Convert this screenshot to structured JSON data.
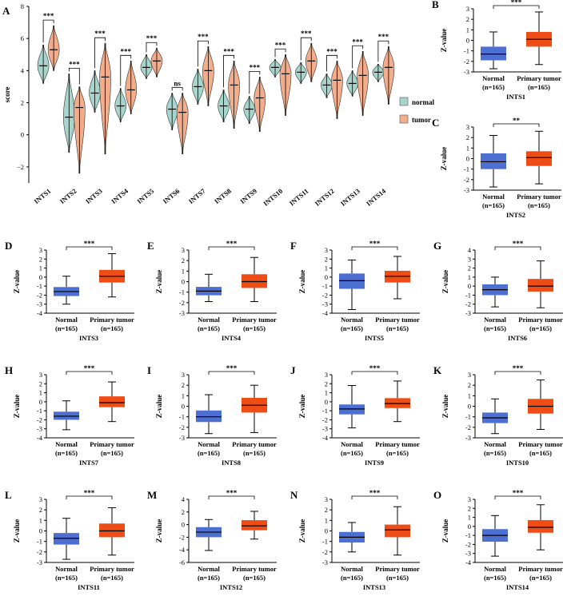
{
  "colors": {
    "normal_violin": "#a7d5cb",
    "tumor_violin": "#f2ad8c",
    "normal_box": "#4e6fd2",
    "tumor_box": "#ee4d16"
  },
  "chart_data": [
    {
      "panel": "A",
      "type": "violin",
      "ylabel": "score",
      "ylim": [
        -3,
        8
      ],
      "yticks": [
        -2,
        0,
        2,
        4,
        6,
        8
      ],
      "legend": [
        "normal",
        "tumor"
      ],
      "legend_position": "right",
      "categories": [
        "INTS1",
        "INTS2",
        "INTS3",
        "INTS4",
        "INTS5",
        "INTS6",
        "INTS7",
        "INTS8",
        "INTS9",
        "INTS10",
        "INTS11",
        "INTS12",
        "INTS13",
        "INTS14"
      ],
      "significance": [
        "***",
        "***",
        "***",
        "***",
        "***",
        "ns",
        "***",
        "***",
        "***",
        "***",
        "***",
        "***",
        "***",
        "***"
      ],
      "series": [
        {
          "name": "normal",
          "median": [
            4.3,
            1.1,
            2.6,
            1.8,
            4.2,
            1.6,
            3.0,
            1.8,
            1.6,
            4.2,
            3.9,
            3.1,
            3.2,
            3.9
          ],
          "min": [
            3.2,
            -1.1,
            1.4,
            0.8,
            3.5,
            0.3,
            1.9,
            0.8,
            0.7,
            3.6,
            3.2,
            2.3,
            2.4,
            3.3
          ],
          "max": [
            5.6,
            3.8,
            4.0,
            2.9,
            5.0,
            2.6,
            4.1,
            2.8,
            2.4,
            4.7,
            4.5,
            3.8,
            4.0,
            4.4
          ]
        },
        {
          "name": "tumor",
          "median": [
            5.3,
            1.7,
            3.6,
            2.8,
            4.6,
            1.4,
            4.0,
            3.1,
            2.3,
            3.8,
            4.6,
            3.4,
            3.7,
            4.2
          ],
          "min": [
            4.0,
            -2.4,
            -1.2,
            1.3,
            3.6,
            -1.2,
            1.8,
            0.4,
            0.2,
            1.2,
            3.3,
            1.0,
            1.2,
            1.9
          ],
          "max": [
            6.8,
            3.0,
            5.7,
            4.6,
            5.4,
            2.6,
            5.5,
            4.6,
            3.6,
            5.0,
            5.7,
            4.6,
            5.2,
            5.5
          ]
        }
      ]
    },
    {
      "panel": "B",
      "type": "box",
      "gene": "INTS1",
      "ylabel": "Z-value",
      "ylim": [
        -3,
        3
      ],
      "yticks": [
        -3,
        -2,
        -1,
        0,
        1,
        2,
        3
      ],
      "significance": "***",
      "categories": [
        "Normal\n(n=165)",
        "Primary tumor\n(n=165)"
      ],
      "boxes": [
        {
          "name": "Normal",
          "n": 165,
          "min": -2.7,
          "q1": -1.9,
          "median": -1.3,
          "q3": -0.6,
          "max": 0.8
        },
        {
          "name": "Primary tumor",
          "n": 165,
          "min": -2.3,
          "q1": -0.6,
          "median": 0.1,
          "q3": 0.8,
          "max": 2.7
        }
      ]
    },
    {
      "panel": "C",
      "type": "box",
      "gene": "INTS2",
      "ylabel": "Z-value",
      "ylim": [
        -3,
        3
      ],
      "yticks": [
        -3,
        -2,
        -1,
        0,
        1,
        2,
        3
      ],
      "significance": "**",
      "categories": [
        "Normal\n(n=165)",
        "Primary tumor\n(n=165)"
      ],
      "boxes": [
        {
          "name": "Normal",
          "n": 165,
          "min": -2.7,
          "q1": -1.0,
          "median": -0.3,
          "q3": 0.5,
          "max": 2.2
        },
        {
          "name": "Primary tumor",
          "n": 165,
          "min": -2.4,
          "q1": -0.7,
          "median": 0.1,
          "q3": 0.7,
          "max": 2.6
        }
      ]
    },
    {
      "panel": "D",
      "type": "box",
      "gene": "INTS3",
      "ylabel": "Z-value",
      "ylim": [
        -4,
        3
      ],
      "yticks": [
        -4,
        -3,
        -2,
        -1,
        0,
        1,
        2,
        3
      ],
      "significance": "***",
      "categories": [
        "Normal\n(n=165)",
        "Primary tumor\n(n=165)"
      ],
      "boxes": [
        {
          "name": "Normal",
          "n": 165,
          "min": -3.0,
          "q1": -2.1,
          "median": -1.6,
          "q3": -1.1,
          "max": 0.1
        },
        {
          "name": "Primary tumor",
          "n": 165,
          "min": -2.2,
          "q1": -0.6,
          "median": 0.1,
          "q3": 0.8,
          "max": 2.6
        }
      ]
    },
    {
      "panel": "E",
      "type": "box",
      "gene": "INTS4",
      "ylabel": "Z-value",
      "ylim": [
        -3,
        3
      ],
      "yticks": [
        -3,
        -2,
        -1,
        0,
        1,
        2,
        3
      ],
      "significance": "***",
      "categories": [
        "Normal\n(n=165)",
        "Primary tumor\n(n=165)"
      ],
      "boxes": [
        {
          "name": "Normal",
          "n": 165,
          "min": -1.9,
          "q1": -1.3,
          "median": -0.9,
          "q3": -0.5,
          "max": 0.7
        },
        {
          "name": "Primary tumor",
          "n": 165,
          "min": -1.9,
          "q1": -0.6,
          "median": 0.0,
          "q3": 0.7,
          "max": 2.3
        }
      ]
    },
    {
      "panel": "F",
      "type": "box",
      "gene": "INTS5",
      "ylabel": "Z-value",
      "ylim": [
        -4,
        3
      ],
      "yticks": [
        -4,
        -3,
        -2,
        -1,
        0,
        1,
        2,
        3
      ],
      "significance": "***",
      "categories": [
        "Normal\n(n=165)",
        "Primary tumor\n(n=165)"
      ],
      "boxes": [
        {
          "name": "Normal",
          "n": 165,
          "min": -3.6,
          "q1": -1.3,
          "median": -0.4,
          "q3": 0.4,
          "max": 1.9
        },
        {
          "name": "Primary tumor",
          "n": 165,
          "min": -2.4,
          "q1": -0.6,
          "median": 0.1,
          "q3": 0.7,
          "max": 2.3
        }
      ]
    },
    {
      "panel": "G",
      "type": "box",
      "gene": "INTS6",
      "ylabel": "Z-value",
      "ylim": [
        -3,
        4
      ],
      "yticks": [
        -3,
        -2,
        -1,
        0,
        1,
        2,
        3,
        4
      ],
      "significance": "***",
      "categories": [
        "Normal\n(n=165)",
        "Primary tumor\n(n=165)"
      ],
      "boxes": [
        {
          "name": "Normal",
          "n": 165,
          "min": -2.3,
          "q1": -1.0,
          "median": -0.4,
          "q3": 0.2,
          "max": 1.0
        },
        {
          "name": "Primary tumor",
          "n": 165,
          "min": -2.4,
          "q1": -0.6,
          "median": 0.0,
          "q3": 0.8,
          "max": 2.8
        }
      ]
    },
    {
      "panel": "H",
      "type": "box",
      "gene": "INTS7",
      "ylabel": "Z-value",
      "ylim": [
        -4,
        3
      ],
      "yticks": [
        -4,
        -3,
        -2,
        -1,
        0,
        1,
        2,
        3
      ],
      "significance": "***",
      "categories": [
        "Normal\n(n=165)",
        "Primary tumor\n(n=165)"
      ],
      "boxes": [
        {
          "name": "Normal",
          "n": 165,
          "min": -3.1,
          "q1": -2.0,
          "median": -1.6,
          "q3": -1.1,
          "max": 0.1
        },
        {
          "name": "Primary tumor",
          "n": 165,
          "min": -2.2,
          "q1": -0.6,
          "median": -0.1,
          "q3": 0.6,
          "max": 2.2
        }
      ]
    },
    {
      "panel": "I",
      "type": "box",
      "gene": "INTS8",
      "ylabel": "Z-value",
      "ylim": [
        -3,
        3
      ],
      "yticks": [
        -3,
        -2,
        -1,
        0,
        1,
        2,
        3
      ],
      "significance": "***",
      "categories": [
        "Normal\n(n=165)",
        "Primary tumor\n(n=165)"
      ],
      "boxes": [
        {
          "name": "Normal",
          "n": 165,
          "min": -2.6,
          "q1": -1.5,
          "median": -1.0,
          "q3": -0.4,
          "max": 1.1
        },
        {
          "name": "Primary tumor",
          "n": 165,
          "min": -2.5,
          "q1": -0.6,
          "median": 0.1,
          "q3": 0.8,
          "max": 2.0
        }
      ]
    },
    {
      "panel": "J",
      "type": "box",
      "gene": "INTS9",
      "ylabel": "Z-value",
      "ylim": [
        -4,
        3
      ],
      "yticks": [
        -4,
        -3,
        -2,
        -1,
        0,
        1,
        2,
        3
      ],
      "significance": "***",
      "categories": [
        "Normal\n(n=165)",
        "Primary tumor\n(n=165)"
      ],
      "boxes": [
        {
          "name": "Normal",
          "n": 165,
          "min": -2.9,
          "q1": -1.4,
          "median": -0.8,
          "q3": -0.3,
          "max": 1.8
        },
        {
          "name": "Primary tumor",
          "n": 165,
          "min": -2.2,
          "q1": -0.7,
          "median": -0.2,
          "q3": 0.4,
          "max": 2.3
        }
      ]
    },
    {
      "panel": "K",
      "type": "box",
      "gene": "INTS10",
      "ylabel": "Z-value",
      "ylim": [
        -3,
        3
      ],
      "yticks": [
        -3,
        -2,
        -1,
        0,
        1,
        2,
        3
      ],
      "significance": "***",
      "categories": [
        "Normal\n(n=165)",
        "Primary tumor\n(n=165)"
      ],
      "boxes": [
        {
          "name": "Normal",
          "n": 165,
          "min": -2.6,
          "q1": -1.6,
          "median": -1.1,
          "q3": -0.6,
          "max": 0.7
        },
        {
          "name": "Primary tumor",
          "n": 165,
          "min": -2.2,
          "q1": -0.7,
          "median": 0.0,
          "q3": 0.7,
          "max": 2.5
        }
      ]
    },
    {
      "panel": "L",
      "type": "box",
      "gene": "INTS11",
      "ylabel": "Z-value",
      "ylim": [
        -3,
        3
      ],
      "yticks": [
        -3,
        -2,
        -1,
        0,
        1,
        2,
        3
      ],
      "significance": "***",
      "categories": [
        "Normal\n(n=165)",
        "Primary tumor\n(n=165)"
      ],
      "boxes": [
        {
          "name": "Normal",
          "n": 165,
          "min": -2.7,
          "q1": -1.3,
          "median": -0.7,
          "q3": -0.2,
          "max": 1.2
        },
        {
          "name": "Primary tumor",
          "n": 165,
          "min": -2.3,
          "q1": -0.6,
          "median": 0.0,
          "q3": 0.7,
          "max": 2.2
        }
      ]
    },
    {
      "panel": "M",
      "type": "box",
      "gene": "INTS12",
      "ylabel": "Z-value",
      "ylim": [
        -6,
        4
      ],
      "yticks": [
        -6,
        -4,
        -2,
        0,
        2,
        4
      ],
      "significance": "***",
      "categories": [
        "Normal\n(n=165)",
        "Primary tumor\n(n=165)"
      ],
      "boxes": [
        {
          "name": "Normal",
          "n": 165,
          "min": -4.1,
          "q1": -2.0,
          "median": -1.2,
          "q3": -0.4,
          "max": 0.8
        },
        {
          "name": "Primary tumor",
          "n": 165,
          "min": -2.3,
          "q1": -0.9,
          "median": -0.2,
          "q3": 0.7,
          "max": 2.1
        }
      ]
    },
    {
      "panel": "N",
      "type": "box",
      "gene": "INTS13",
      "ylabel": "Z-value",
      "ylim": [
        -3,
        3
      ],
      "yticks": [
        -3,
        -2,
        -1,
        0,
        1,
        2,
        3
      ],
      "significance": "***",
      "categories": [
        "Normal\n(n=165)",
        "Primary tumor\n(n=165)"
      ],
      "boxes": [
        {
          "name": "Normal",
          "n": 165,
          "min": -2.0,
          "q1": -1.1,
          "median": -0.6,
          "q3": -0.1,
          "max": 0.8
        },
        {
          "name": "Primary tumor",
          "n": 165,
          "min": -2.3,
          "q1": -0.6,
          "median": 0.1,
          "q3": 0.6,
          "max": 2.3
        }
      ]
    },
    {
      "panel": "O",
      "type": "box",
      "gene": "INTS14",
      "ylabel": "Z-value",
      "ylim": [
        -4,
        3
      ],
      "yticks": [
        -4,
        -3,
        -2,
        -1,
        0,
        1,
        2,
        3
      ],
      "significance": "***",
      "categories": [
        "Normal\n(n=165)",
        "Primary tumor\n(n=165)"
      ],
      "boxes": [
        {
          "name": "Normal",
          "n": 165,
          "min": -3.3,
          "q1": -1.7,
          "median": -1.0,
          "q3": -0.3,
          "max": 1.2
        },
        {
          "name": "Primary tumor",
          "n": 165,
          "min": -2.6,
          "q1": -0.7,
          "median": -0.1,
          "q3": 0.7,
          "max": 2.4
        }
      ]
    }
  ]
}
